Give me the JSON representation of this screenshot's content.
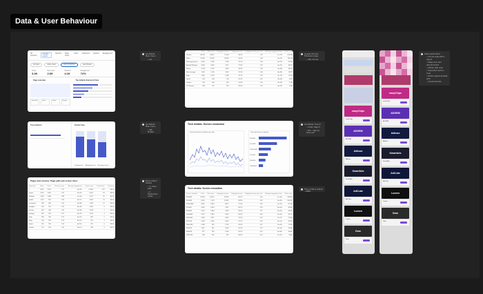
{
  "header": {
    "title": "Data & User Behaviour"
  },
  "notes": {
    "n1": [
      "GA Mobile: Main menu",
      "GA Mobile: Tab"
    ],
    "n2": [
      "Google Chrome Extension page",
      "Tab: Funnel exploration table with Bar",
      "On mobile views"
    ],
    "n3": [
      "Data explorations",
      "Funnel exploration report",
      "Steps and user abandonment",
      "Mobile web view",
      "Expanded section view",
      "Notes regarding table with",
      "Ad placements"
    ],
    "n4": [
      "GA Mobile: Main menu",
      "Tab Mobile: Tools menu Tab",
      "Sort and custom period"
    ],
    "n5": [
      "GA Mobile: Funnel",
      "Chart, Report",
      "Bar - step by step user"
    ],
    "n6": [
      "Build output: Details",
      "1. Users path",
      "2. Exploration views",
      "3. Events",
      "4. Metrics",
      "Possible steps for",
      "A: Scroll",
      "B: Clicks"
    ],
    "n7": [
      "This contains output - OMRs"
    ]
  },
  "dashboard": {
    "tabs": [
      "All products",
      "Custom events",
      "Reports",
      "Page views",
      "Users",
      "Audiences",
      "Explore",
      "Engagement"
    ],
    "active_tab": "Custom events",
    "chips": [
      "All Users",
      "Active Users",
      "Add comparison",
      "Last 28 days"
    ],
    "kpis": [
      {
        "label": "Users",
        "value": "3.2K"
      },
      {
        "label": "New users",
        "value": "2.6K"
      },
      {
        "label": "Sessions",
        "value": "4.1K"
      },
      {
        "label": "Engagement",
        "value": "72%"
      }
    ],
    "left_section": "Page overview",
    "right_section": "Top default channel & Flow",
    "mini_metrics": [
      "Sessions",
      "Users",
      "Views",
      "Events"
    ]
  },
  "funnel_small": {
    "left_title": "Top locations",
    "right_title": "Funnel step",
    "legend": [
      "Completion rate",
      "Abandonment rate",
      "Percentage of users"
    ]
  },
  "table_panel": {
    "title": "Pages and screens: Page path and screen class",
    "headers": [
      "Page path",
      "Views",
      "Users",
      "Views per user",
      "Average engagement",
      "Event count",
      "Conversions",
      "Revenue"
    ],
    "rows": [
      [
        "/",
        "8,421",
        "3,104",
        "2.71",
        "0m 42s",
        "21,304",
        "118",
        "$0.00"
      ],
      [
        "/signin",
        "2,301",
        "1,420",
        "1.62",
        "0m 31s",
        "6,022",
        "45",
        "$0.00"
      ],
      [
        "/platform",
        "1,894",
        "1,008",
        "1.88",
        "1m 04s",
        "4,917",
        "32",
        "$0.00"
      ],
      [
        "/profile",
        "1,211",
        "810",
        "1.49",
        "0m 57s",
        "3,001",
        "21",
        "$0.00"
      ],
      [
        "/customers",
        "986",
        "630",
        "1.56",
        "0m 48s",
        "2,418",
        "14",
        "$0.00"
      ],
      [
        "/analytics",
        "744",
        "512",
        "1.45",
        "0m 39s",
        "1,902",
        "9",
        "$0.00"
      ],
      [
        "/pricing",
        "602",
        "430",
        "1.40",
        "0m 36s",
        "1,544",
        "7",
        "$0.00"
      ],
      [
        "/settings",
        "455",
        "301",
        "1.51",
        "0m 29s",
        "1,120",
        "4",
        "$0.00"
      ],
      [
        "/help",
        "318",
        "260",
        "1.22",
        "0m 22s",
        "802",
        "2",
        "$0.00"
      ],
      [
        "/blog",
        "244",
        "198",
        "1.23",
        "0m 51s",
        "612",
        "1",
        "$0.00"
      ],
      [
        "/about",
        "190",
        "166",
        "1.14",
        "0m 19s",
        "451",
        "0",
        "$0.00"
      ],
      [
        "/contact",
        "121",
        "104",
        "1.16",
        "0m 17s",
        "298",
        "0",
        "$0.00"
      ]
    ]
  },
  "tech_table_top": {
    "headers": [
      "",
      "Users",
      "New users",
      "Engaged sessions",
      "Engagement rate",
      "Engaged sessions per user",
      "Average engagement time",
      "Event count"
    ],
    "rows": [
      [
        "Chrome",
        "48,210",
        "40,112",
        "71,004",
        "68.2%",
        "1.47",
        "1m 12s",
        "612,330"
      ],
      [
        "Safari",
        "21,404",
        "18,022",
        "30,918",
        "64.9%",
        "1.44",
        "1m 03s",
        "254,118"
      ],
      [
        "Samsung Internet",
        "6,012",
        "5,318",
        "7,820",
        "59.1%",
        "1.30",
        "0m 51s",
        "61,044"
      ],
      [
        "Android Webview",
        "3,981",
        "3,402",
        "4,917",
        "57.3%",
        "1.24",
        "0m 47s",
        "38,215"
      ],
      [
        "Firefox",
        "2,744",
        "2,101",
        "3,655",
        "66.0%",
        "1.33",
        "1m 08s",
        "30,902"
      ],
      [
        "Safari (in-app)",
        "1,902",
        "1,760",
        "2,011",
        "52.4%",
        "1.06",
        "0m 33s",
        "14,877"
      ],
      [
        "Edge",
        "1,455",
        "1,120",
        "1,998",
        "67.7%",
        "1.37",
        "1m 15s",
        "17,310"
      ],
      [
        "Opera",
        "612",
        "540",
        "744",
        "61.2%",
        "1.22",
        "0m 58s",
        "6,015"
      ],
      [
        "Yandex",
        "301",
        "266",
        "355",
        "55.8%",
        "1.18",
        "0m 42s",
        "2,744"
      ],
      [
        "UC Browser",
        "188",
        "170",
        "201",
        "49.6%",
        "1.07",
        "0m 29s",
        "1,402"
      ]
    ]
  },
  "tech_chart": {
    "title": "Tech details: Screen resolution",
    "line_title": "Users by Screen resolution over time",
    "bar_title": "Users by Screen resolution",
    "bar_labels": [
      "390x844",
      "414x896",
      "1920x1080",
      "375x667",
      "360x800",
      "1536x864"
    ]
  },
  "chart_data": {
    "type": "bar",
    "title": "Users by Screen resolution",
    "categories": [
      "390x844",
      "414x896",
      "1920x1080",
      "375x667",
      "360x800",
      "1536x864"
    ],
    "values": [
      92,
      60,
      40,
      30,
      22,
      14
    ],
    "ylim": [
      0,
      100
    ]
  },
  "tech_table_bottom": {
    "title": "Tech details: Screen resolution",
    "headers": [
      "Screen resolution",
      "Users",
      "New users",
      "Engaged sessions",
      "Engagement rate",
      "Engaged sessions per user",
      "Average engagement time",
      "Event count",
      "Conversions"
    ],
    "rows": [
      [
        "390x844",
        "12,440",
        "10,912",
        "18,204",
        "66.1%",
        "1.46",
        "1m 10s",
        "158,320",
        "214"
      ],
      [
        "414x896",
        "8,105",
        "7,014",
        "11,802",
        "64.8%",
        "1.45",
        "1m 06s",
        "102,447",
        "141"
      ],
      [
        "1920x1080",
        "5,409",
        "4,330",
        "8,917",
        "71.3%",
        "1.65",
        "1m 32s",
        "90,118",
        "166"
      ],
      [
        "375x667",
        "4,002",
        "3,540",
        "5,311",
        "60.2%",
        "1.33",
        "0m 55s",
        "44,905",
        "58"
      ],
      [
        "360x800",
        "3,118",
        "2,804",
        "3,960",
        "58.4%",
        "1.27",
        "0m 49s",
        "33,010",
        "41"
      ],
      [
        "1536x864",
        "2,210",
        "1,802",
        "3,544",
        "69.9%",
        "1.60",
        "1m 24s",
        "36,775",
        "63"
      ],
      [
        "1440x900",
        "1,640",
        "1,311",
        "2,601",
        "70.5%",
        "1.59",
        "1m 21s",
        "27,004",
        "44"
      ],
      [
        "412x915",
        "1,402",
        "1,240",
        "1,810",
        "57.7%",
        "1.29",
        "0m 51s",
        "15,220",
        "17"
      ],
      [
        "1366x768",
        "1,188",
        "960",
        "1,744",
        "65.0%",
        "1.47",
        "1m 09s",
        "17,332",
        "23"
      ],
      [
        "393x873",
        "1,010",
        "902",
        "1,304",
        "59.9%",
        "1.29",
        "0m 50s",
        "11,845",
        "12"
      ],
      [
        "428x926",
        "877",
        "780",
        "1,160",
        "63.2%",
        "1.32",
        "0m 58s",
        "10,002",
        "11"
      ],
      [
        "1280x720",
        "640",
        "520",
        "902",
        "68.8%",
        "1.41",
        "1m 11s",
        "8,540",
        "9"
      ]
    ]
  },
  "phones": {
    "ad_labels": [
      "easyChips",
      "ADGEM",
      "Adbuzz",
      "SmartAds",
      "AdCube",
      "Lumen",
      "Gear"
    ],
    "ad_colors": [
      "#c02a86",
      "#5b2fb3",
      "#121a3f",
      "#1b1b2e",
      "#0f1638",
      "#101010",
      "#2a2a2a"
    ],
    "sub_label": "Install"
  }
}
